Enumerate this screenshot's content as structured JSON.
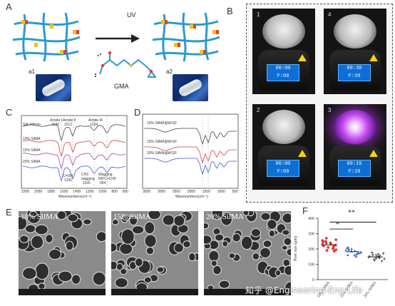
{
  "panels": {
    "A": "A",
    "B": "B",
    "C": "C",
    "D": "D",
    "E": "E",
    "F": "F"
  },
  "panel_a": {
    "uv_label": "UV",
    "gma_label": "GMA",
    "sub_a1": "a1",
    "sub_a2": "a2"
  },
  "panel_b": {
    "devices": [
      {
        "number": "1",
        "screen_top": "00:00",
        "screen_bottom": "F:00"
      },
      {
        "number": "4",
        "screen_top": "00:30",
        "screen_bottom": "F:30"
      },
      {
        "number": "2",
        "screen_top": "00:00",
        "screen_bottom": "F:00"
      },
      {
        "number": "3",
        "screen_top": "00:10",
        "screen_bottom": "F:10"
      }
    ]
  },
  "panel_c": {
    "series": [
      "Silk Fibroin",
      "10% SilMA",
      "15% SilMA",
      "20% SilMA"
    ],
    "annotations": [
      "Amide I",
      "1640",
      "Amide II",
      "1512",
      "Amide III",
      "1234",
      "C=OH",
      "1241",
      "CH2",
      "wagging",
      "1165",
      "Wagging",
      "RR'C=CH2",
      "954"
    ],
    "x_ticks": [
      "2200",
      "2000",
      "1800",
      "1600",
      "1400",
      "1200",
      "1000",
      "800",
      "600"
    ],
    "xlabel": "Wavenumbers(cm⁻¹)",
    "colors": [
      "#444444",
      "#d04040",
      "#a040a0",
      "#3a5ad0"
    ]
  },
  "panel_d": {
    "series": [
      "10% SilMA@bFGF",
      "15% SilMA@bFGF",
      "20% SilMA@bFGF"
    ],
    "x_ticks": [
      "3500",
      "3000",
      "2500",
      "2000",
      "1500",
      "1000",
      "500"
    ],
    "xlabel": "Wavenumbers(cm⁻¹)",
    "colors": [
      "#444444",
      "#d04040",
      "#3a5ad0"
    ]
  },
  "panel_e": {
    "images": [
      {
        "label": "10% SilMA"
      },
      {
        "label": "15% SilMA"
      },
      {
        "label": "20% SilMA"
      }
    ]
  },
  "panel_f": {
    "ylabel": "Pore size (μm)",
    "y_ticks": [
      "0",
      "100",
      "200",
      "300",
      "400"
    ],
    "categories": [
      "10% SilMA",
      "15% SilMA",
      "20% SilMA"
    ],
    "significance": [
      "*",
      "**"
    ],
    "colors": [
      "#e03030",
      "#3a6ad8",
      "#555555"
    ]
  },
  "chart_data": {
    "type": "scatter",
    "title": "",
    "xlabel": "",
    "ylabel": "Pore size (μm)",
    "ylim": [
      0,
      400
    ],
    "categories": [
      "10% SilMA",
      "15% SilMA",
      "20% SilMA"
    ],
    "series": [
      {
        "name": "10% SilMA",
        "values": [
          205,
          235,
          260,
          240,
          220,
          195,
          250,
          230,
          210,
          270,
          185,
          225,
          245,
          215,
          200,
          255,
          190,
          238
        ]
      },
      {
        "name": "15% SilMA",
        "values": [
          185,
          170,
          200,
          160,
          210,
          175,
          195,
          150,
          190,
          180,
          165,
          205,
          172,
          188,
          158,
          198
        ]
      },
      {
        "name": "20% SilMA",
        "values": [
          150,
          135,
          170,
          120,
          160,
          145,
          175,
          130,
          155,
          140,
          165,
          125,
          148,
          158,
          138
        ]
      }
    ],
    "means": [
      226,
      182,
      148
    ]
  },
  "watermark": "知乎 @Engineering-Eng Life"
}
